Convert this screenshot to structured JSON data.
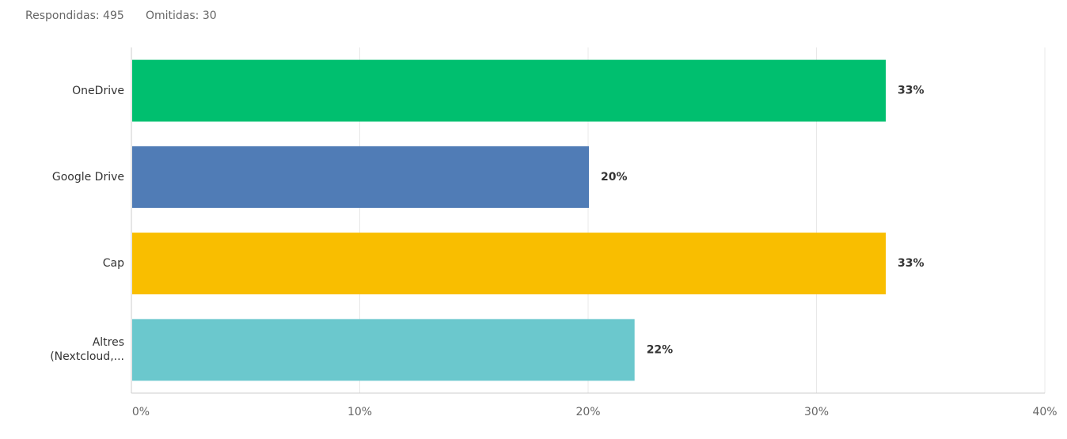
{
  "chart_data": {
    "type": "hbar",
    "annotations": [
      "Respondidas: 495",
      "Omitidas: 30"
    ],
    "categories": [
      "OneDrive",
      "Google Drive",
      "Cap",
      "Altres (Nextcloud,..."
    ],
    "values": [
      33,
      20,
      33,
      22
    ],
    "value_labels": [
      "33%",
      "20%",
      "33%",
      "22%"
    ],
    "colors": [
      "#00bf6f",
      "#507cb6",
      "#f9be00",
      "#6bc8cd"
    ],
    "xlim": [
      0,
      40
    ],
    "xticks": [
      {
        "value": 0,
        "label": "0%"
      },
      {
        "value": 10,
        "label": "10%"
      },
      {
        "value": 20,
        "label": "20%"
      },
      {
        "value": 30,
        "label": "30%"
      },
      {
        "value": 40,
        "label": "40%"
      }
    ],
    "grid": true
  }
}
